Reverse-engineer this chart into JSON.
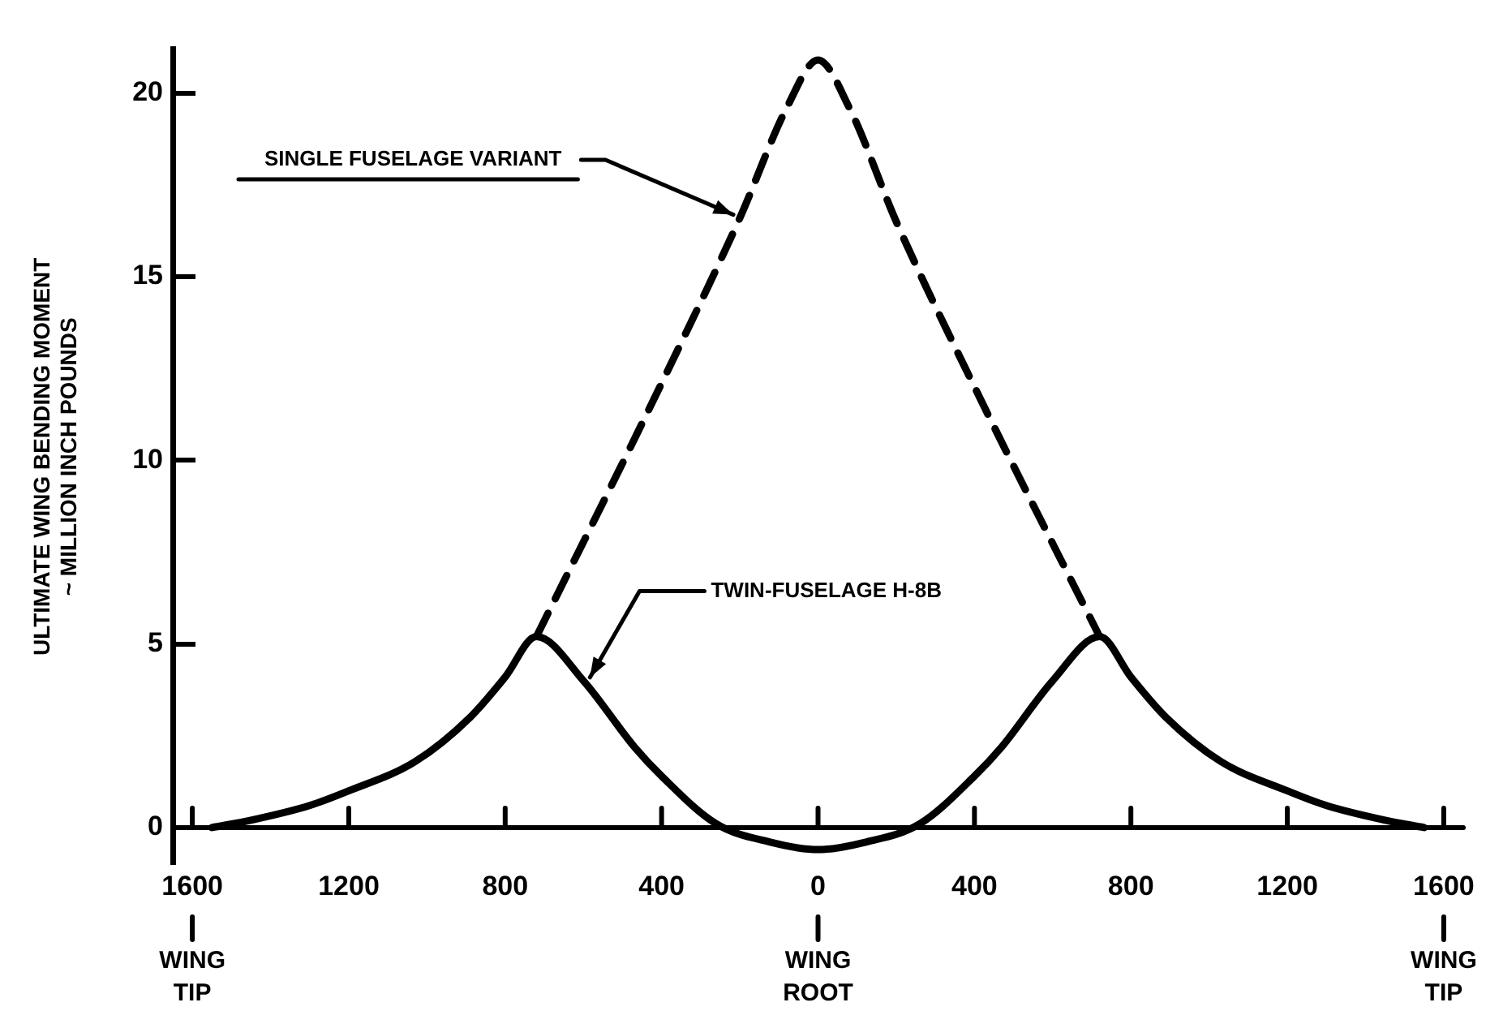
{
  "chart_data": {
    "type": "line",
    "ylabel": "ULTIMATE WING BENDING MOMENT\n~ MILLION INCH POUNDS",
    "xlim": [
      -1650,
      1650
    ],
    "ylim": [
      -1,
      21.2
    ],
    "xticks": [
      {
        "value": -1600,
        "label": "1600"
      },
      {
        "value": -1200,
        "label": "1200"
      },
      {
        "value": -800,
        "label": "800"
      },
      {
        "value": -400,
        "label": "400"
      },
      0,
      400,
      800,
      1200,
      1600
    ],
    "yticks": [
      0,
      5,
      10,
      15,
      20
    ],
    "grid": false,
    "legend": false,
    "marker": "none",
    "annotations": [
      "WING TIP",
      "WING ROOT",
      "WING TIP"
    ],
    "series": [
      {
        "name": "TWIN-FUSELAGE H-8B",
        "color": "#000000",
        "line_style": "solid",
        "x": [
          -1550,
          -1450,
          -1300,
          -1200,
          -1030,
          -890,
          -800,
          -720,
          -600,
          -470,
          -400,
          -260,
          -120,
          0,
          120,
          260,
          400,
          470,
          600,
          720,
          800,
          890,
          1030,
          1200,
          1300,
          1450,
          1550
        ],
        "values": [
          0,
          0.2,
          0.6,
          1.0,
          1.8,
          3.0,
          4.1,
          5.2,
          4.0,
          2.2,
          1.4,
          0.1,
          -0.4,
          -0.6,
          -0.4,
          0.1,
          1.4,
          2.2,
          4.0,
          5.2,
          4.1,
          3.0,
          1.8,
          1.0,
          0.6,
          0.2,
          0
        ]
      },
      {
        "name": "SINGLE FUSELAGE VARIANT",
        "color": "#000000",
        "line_style": "dashed",
        "x": [
          -720,
          -400,
          -200,
          -80,
          0,
          80,
          200,
          400,
          720
        ],
        "values": [
          5.2,
          12.1,
          16.6,
          19.6,
          20.9,
          19.6,
          16.5,
          12.0,
          5.2
        ]
      }
    ]
  }
}
